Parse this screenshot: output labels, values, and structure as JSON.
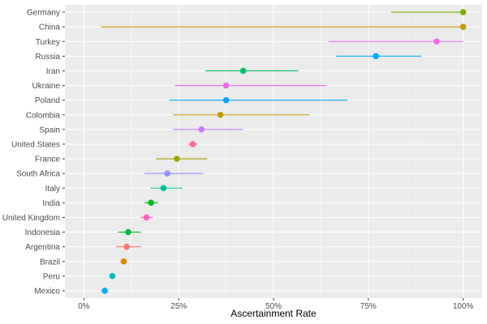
{
  "chart_data": {
    "type": "scatter",
    "subtype": "dot-with-interval",
    "xlabel": "Ascertainment Rate",
    "ylabel": "",
    "xlim": [
      -0.05,
      1.05
    ],
    "x_ticks": [
      {
        "value": 0,
        "label": "0%"
      },
      {
        "value": 0.25,
        "label": "25%"
      },
      {
        "value": 0.5,
        "label": "50%"
      },
      {
        "value": 0.75,
        "label": "75%"
      },
      {
        "value": 1.0,
        "label": "100%"
      }
    ],
    "grid": true,
    "legend": "none",
    "panel_background": "#ebebeb",
    "grid_color": "#ffffff",
    "categories": [
      "Germany",
      "China",
      "Turkey",
      "Russia",
      "Iran",
      "Ukraine",
      "Poland",
      "Colombia",
      "Spain",
      "United States",
      "France",
      "South Africa",
      "Italy",
      "India",
      "United Kingdom",
      "Indonesia",
      "Argentina",
      "Brazil",
      "Peru",
      "Mexico"
    ],
    "series": [
      {
        "category": "Germany",
        "value": 1.0,
        "low": 0.81,
        "high": 1.0,
        "color": "#7CAE00"
      },
      {
        "category": "China",
        "value": 1.0,
        "low": 0.045,
        "high": 1.0,
        "color": "#C49A00"
      },
      {
        "category": "Turkey",
        "value": 0.93,
        "low": 0.645,
        "high": 1.0,
        "color": "#F066EA"
      },
      {
        "category": "Russia",
        "value": 0.77,
        "low": 0.665,
        "high": 0.89,
        "color": "#00A9FF"
      },
      {
        "category": "Iran",
        "value": 0.42,
        "low": 0.32,
        "high": 0.565,
        "color": "#00BE67"
      },
      {
        "category": "Ukraine",
        "value": 0.375,
        "low": 0.24,
        "high": 0.64,
        "color": "#F066EA"
      },
      {
        "category": "Poland",
        "value": 0.375,
        "low": 0.225,
        "high": 0.695,
        "color": "#00A9FF"
      },
      {
        "category": "Colombia",
        "value": 0.36,
        "low": 0.235,
        "high": 0.595,
        "color": "#C49A00"
      },
      {
        "category": "Spain",
        "value": 0.31,
        "low": 0.235,
        "high": 0.42,
        "color": "#C77CFF"
      },
      {
        "category": "United States",
        "value": 0.287,
        "low": 0.275,
        "high": 0.3,
        "color": "#FF6C91"
      },
      {
        "category": "France",
        "value": 0.245,
        "low": 0.19,
        "high": 0.325,
        "color": "#A3A500"
      },
      {
        "category": "South Africa",
        "value": 0.22,
        "low": 0.16,
        "high": 0.315,
        "color": "#9590FF"
      },
      {
        "category": "Italy",
        "value": 0.21,
        "low": 0.175,
        "high": 0.26,
        "color": "#00C19A"
      },
      {
        "category": "India",
        "value": 0.177,
        "low": 0.16,
        "high": 0.195,
        "color": "#00B81F"
      },
      {
        "category": "United Kingdom",
        "value": 0.165,
        "low": 0.15,
        "high": 0.182,
        "color": "#FF61C3"
      },
      {
        "category": "Indonesia",
        "value": 0.117,
        "low": 0.09,
        "high": 0.15,
        "color": "#00BA38"
      },
      {
        "category": "Argentina",
        "value": 0.113,
        "low": 0.085,
        "high": 0.15,
        "color": "#F8766D"
      },
      {
        "category": "Brazil",
        "value": 0.105,
        "low": 0.1,
        "high": 0.11,
        "color": "#E58700"
      },
      {
        "category": "Peru",
        "value": 0.075,
        "low": 0.073,
        "high": 0.078,
        "color": "#00BFC4"
      },
      {
        "category": "Mexico",
        "value": 0.055,
        "low": 0.053,
        "high": 0.058,
        "color": "#00B0F6"
      }
    ]
  }
}
